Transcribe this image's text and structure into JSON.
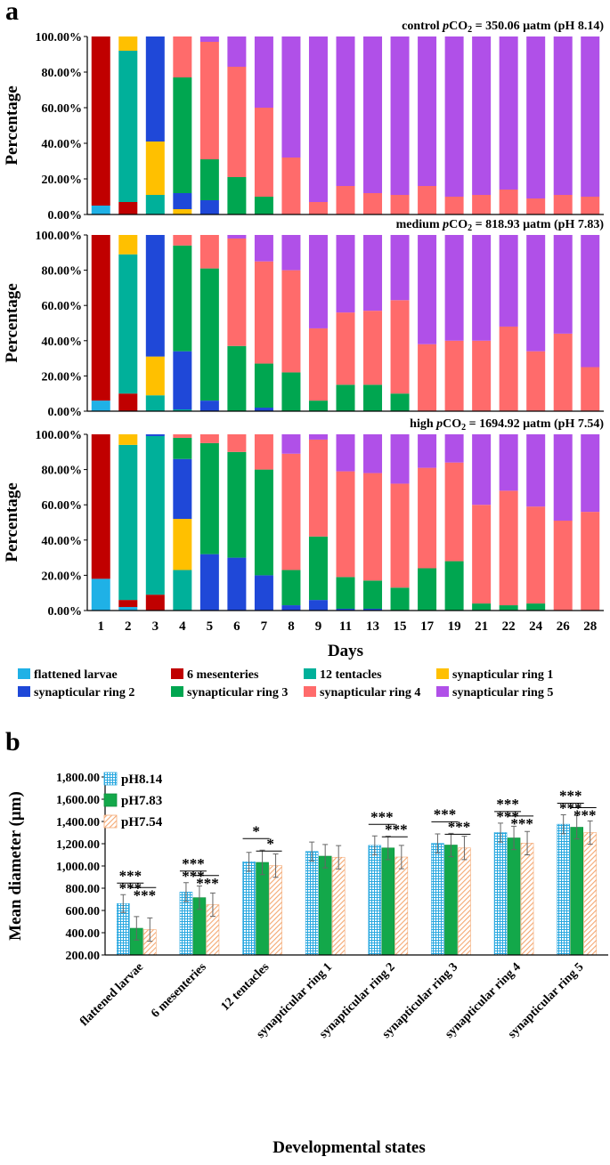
{
  "panel_a_label": "a",
  "panel_b_label": "b",
  "legend": [
    {
      "name": "flattened larvae",
      "color": "#1fb1e6"
    },
    {
      "name": "6 mesenteries",
      "color": "#c00000"
    },
    {
      "name": "12 tentacles",
      "color": "#00b09a"
    },
    {
      "name": "synapticular ring 1",
      "color": "#ffc000"
    },
    {
      "name": "synapticular ring 2",
      "color": "#1f48d8"
    },
    {
      "name": "synapticular ring 3",
      "color": "#00a650"
    },
    {
      "name": "synapticular ring 4",
      "color": "#ff6b6b"
    },
    {
      "name": "synapticular ring 5",
      "color": "#b050e8"
    }
  ],
  "chart_data": [
    {
      "type": "bar",
      "stacked": true,
      "title": "control pCO2 = 350.06 µatm (pH 8.14)",
      "title_parts": {
        "pre": "control ",
        "p": "p",
        "co": "CO",
        "sub": "2",
        "post": " = 350.06 µatm (pH 8.14)"
      },
      "xlabel": "Days",
      "ylabel": "Percentage",
      "ylim": [
        0,
        100
      ],
      "yticks": [
        "0.00%",
        "20.00%",
        "40.00%",
        "60.00%",
        "80.00%",
        "100.00%"
      ],
      "categories": [
        "1",
        "2",
        "3",
        "4",
        "5",
        "6",
        "7",
        "8",
        "9",
        "11",
        "13",
        "15",
        "17",
        "19",
        "21",
        "22",
        "24",
        "26",
        "28"
      ],
      "series": [
        {
          "name": "flattened larvae",
          "values": [
            5,
            0,
            0,
            0,
            0,
            0,
            0,
            0,
            0,
            0,
            0,
            0,
            0,
            0,
            0,
            0,
            0,
            0,
            0
          ]
        },
        {
          "name": "6 mesenteries",
          "values": [
            95,
            7,
            0,
            0,
            0,
            0,
            0,
            0,
            0,
            0,
            0,
            0,
            0,
            0,
            0,
            0,
            0,
            0,
            0
          ]
        },
        {
          "name": "12 tentacles",
          "values": [
            0,
            85,
            11,
            0,
            0,
            0,
            0,
            0,
            0,
            0,
            0,
            0,
            0,
            0,
            0,
            0,
            0,
            0,
            0
          ]
        },
        {
          "name": "synapticular ring 1",
          "values": [
            0,
            8,
            30,
            3,
            0,
            0,
            0,
            0,
            0,
            0,
            0,
            0,
            0,
            0,
            0,
            0,
            0,
            0,
            0
          ]
        },
        {
          "name": "synapticular ring 2",
          "values": [
            0,
            0,
            59,
            9,
            8,
            0,
            0,
            0,
            0,
            0,
            0,
            0,
            0,
            0,
            0,
            0,
            0,
            0,
            0
          ]
        },
        {
          "name": "synapticular ring 3",
          "values": [
            0,
            0,
            0,
            65,
            23,
            21,
            10,
            0,
            0,
            0,
            0,
            0,
            0,
            0,
            0,
            0,
            0,
            0,
            0
          ]
        },
        {
          "name": "synapticular ring 4",
          "values": [
            0,
            0,
            0,
            23,
            66,
            62,
            50,
            32,
            7,
            16,
            12,
            11,
            16,
            10,
            11,
            14,
            9,
            11,
            10
          ]
        },
        {
          "name": "synapticular ring 5",
          "values": [
            0,
            0,
            0,
            0,
            3,
            17,
            40,
            68,
            93,
            84,
            88,
            89,
            84,
            90,
            89,
            86,
            91,
            89,
            90
          ]
        }
      ]
    },
    {
      "type": "bar",
      "stacked": true,
      "title": "medium pCO2 = 818.93 µatm (pH 7.83)",
      "title_parts": {
        "pre": "medium ",
        "p": "p",
        "co": "CO",
        "sub": "2",
        "post": " = 818.93 µatm (pH 7.83)"
      },
      "xlabel": "Days",
      "ylabel": "Percentage",
      "ylim": [
        0,
        100
      ],
      "yticks": [
        "0.00%",
        "20.00%",
        "40.00%",
        "60.00%",
        "80.00%",
        "100.00%"
      ],
      "categories": [
        "1",
        "2",
        "3",
        "4",
        "5",
        "6",
        "7",
        "8",
        "9",
        "11",
        "13",
        "15",
        "17",
        "19",
        "21",
        "22",
        "24",
        "26",
        "28"
      ],
      "series": [
        {
          "name": "flattened larvae",
          "values": [
            6,
            0,
            0,
            0,
            0,
            0,
            0,
            0,
            0,
            0,
            0,
            0,
            0,
            0,
            0,
            0,
            0,
            0,
            0
          ]
        },
        {
          "name": "6 mesenteries",
          "values": [
            94,
            10,
            0,
            0,
            0,
            0,
            0,
            0,
            0,
            0,
            0,
            0,
            0,
            0,
            0,
            0,
            0,
            0,
            0
          ]
        },
        {
          "name": "12 tentacles",
          "values": [
            0,
            79,
            9,
            1,
            0,
            0,
            0,
            0,
            0,
            0,
            0,
            0,
            0,
            0,
            0,
            0,
            0,
            0,
            0
          ]
        },
        {
          "name": "synapticular ring 1",
          "values": [
            0,
            11,
            22,
            0,
            0,
            0,
            0,
            0,
            0,
            0,
            0,
            0,
            0,
            0,
            0,
            0,
            0,
            0,
            0
          ]
        },
        {
          "name": "synapticular ring 2",
          "values": [
            0,
            0,
            69,
            33,
            6,
            0,
            2,
            0,
            0,
            0,
            0,
            0,
            0,
            0,
            0,
            0,
            0,
            0,
            0
          ]
        },
        {
          "name": "synapticular ring 3",
          "values": [
            0,
            0,
            0,
            60,
            75,
            37,
            25,
            22,
            6,
            15,
            15,
            10,
            0,
            0,
            0,
            0,
            0,
            0,
            0
          ]
        },
        {
          "name": "synapticular ring 4",
          "values": [
            0,
            0,
            0,
            6,
            19,
            61,
            58,
            58,
            41,
            41,
            42,
            53,
            38,
            40,
            40,
            48,
            34,
            44,
            25
          ]
        },
        {
          "name": "synapticular ring 5",
          "values": [
            0,
            0,
            0,
            0,
            0,
            2,
            15,
            20,
            53,
            44,
            43,
            37,
            62,
            60,
            60,
            52,
            66,
            56,
            75
          ]
        }
      ]
    },
    {
      "type": "bar",
      "stacked": true,
      "title": "high pCO2 = 1694.92 µatm (pH 7.54)",
      "title_parts": {
        "pre": "high ",
        "p": "p",
        "co": "CO",
        "sub": "2",
        "post": " = 1694.92 µatm (pH 7.54)"
      },
      "xlabel": "Days",
      "ylabel": "Percentage",
      "ylim": [
        0,
        100
      ],
      "yticks": [
        "0.00%",
        "20.00%",
        "40.00%",
        "60.00%",
        "80.00%",
        "100.00%"
      ],
      "categories": [
        "1",
        "2",
        "3",
        "4",
        "5",
        "6",
        "7",
        "8",
        "9",
        "11",
        "13",
        "15",
        "17",
        "19",
        "21",
        "22",
        "24",
        "26",
        "28"
      ],
      "series": [
        {
          "name": "flattened larvae",
          "values": [
            18,
            2,
            0,
            0,
            0,
            0,
            0,
            0,
            0,
            0,
            0,
            0,
            0,
            0,
            0,
            0,
            0,
            0,
            0
          ]
        },
        {
          "name": "6 mesenteries",
          "values": [
            82,
            4,
            9,
            0,
            0,
            0,
            0,
            0,
            0,
            0,
            0,
            0,
            0,
            0,
            0,
            0,
            0,
            0,
            0
          ]
        },
        {
          "name": "12 tentacles",
          "values": [
            0,
            88,
            90,
            23,
            0,
            0,
            0,
            0,
            0,
            0,
            0,
            0,
            0,
            0,
            0,
            0,
            0,
            0,
            0
          ]
        },
        {
          "name": "synapticular ring 1",
          "values": [
            0,
            6,
            0,
            29,
            0,
            0,
            0,
            0,
            0,
            0,
            0,
            0,
            0,
            0,
            0,
            0,
            0,
            0,
            0
          ]
        },
        {
          "name": "synapticular ring 2",
          "values": [
            0,
            0,
            1,
            34,
            32,
            30,
            20,
            3,
            6,
            1,
            1,
            0,
            0,
            0,
            0,
            0,
            0,
            0,
            0
          ]
        },
        {
          "name": "synapticular ring 3",
          "values": [
            0,
            0,
            0,
            12,
            63,
            60,
            60,
            20,
            36,
            18,
            16,
            13,
            24,
            28,
            4,
            3,
            4,
            0,
            0
          ]
        },
        {
          "name": "synapticular ring 4",
          "values": [
            0,
            0,
            0,
            2,
            5,
            10,
            20,
            66,
            55,
            60,
            61,
            59,
            57,
            56,
            56,
            65,
            55,
            51,
            56
          ]
        },
        {
          "name": "synapticular ring 5",
          "values": [
            0,
            0,
            0,
            0,
            0,
            0,
            0,
            11,
            3,
            21,
            22,
            28,
            19,
            16,
            40,
            32,
            41,
            49,
            44
          ]
        }
      ]
    },
    {
      "type": "bar",
      "grouped": true,
      "xlabel": "Developmental states",
      "ylabel": "Mean diameter (μm)",
      "ylim": [
        200,
        1800
      ],
      "yticks": [
        "200.00",
        "400.00",
        "600.00",
        "800.00",
        "1,000.00",
        "1,200.00",
        "1,400.00",
        "1,600.00",
        "1,800.00"
      ],
      "categories": [
        "flattened larvae",
        "6 mesenteries",
        "12 tentacles",
        "synapticular ring 1",
        "synapticular ring 2",
        "synapticular ring 3",
        "synapticular ring 4",
        "synapticular ring 5"
      ],
      "series": [
        {
          "name": "pH8.14",
          "values": [
            662,
            765,
            1037,
            1130,
            1185,
            1203,
            1300,
            1375
          ],
          "errors": [
            80,
            85,
            85,
            85,
            85,
            85,
            85,
            85
          ]
        },
        {
          "name": "pH7.83",
          "values": [
            440,
            715,
            1032,
            1088,
            1162,
            1188,
            1252,
            1348
          ],
          "errors": [
            105,
            105,
            110,
            105,
            105,
            105,
            105,
            105
          ]
        },
        {
          "name": "pH7.54",
          "values": [
            428,
            652,
            1003,
            1078,
            1080,
            1162,
            1205,
            1300
          ],
          "errors": [
            105,
            105,
            105,
            105,
            105,
            105,
            105,
            105
          ]
        }
      ],
      "significance": [
        {
          "top": "***",
          "mid": "***",
          "right": "***"
        },
        {
          "top": "***",
          "mid": "***",
          "right": "***"
        },
        {
          "top": "*",
          "mid": "",
          "right": "*"
        },
        {
          "top": "",
          "mid": "",
          "right": ""
        },
        {
          "top": "***",
          "mid": "",
          "right": "***"
        },
        {
          "top": "***",
          "mid": "",
          "right": "***"
        },
        {
          "top": "***",
          "mid": "***",
          "right": "***"
        },
        {
          "top": "***",
          "mid": "***",
          "right": "***"
        }
      ]
    }
  ]
}
